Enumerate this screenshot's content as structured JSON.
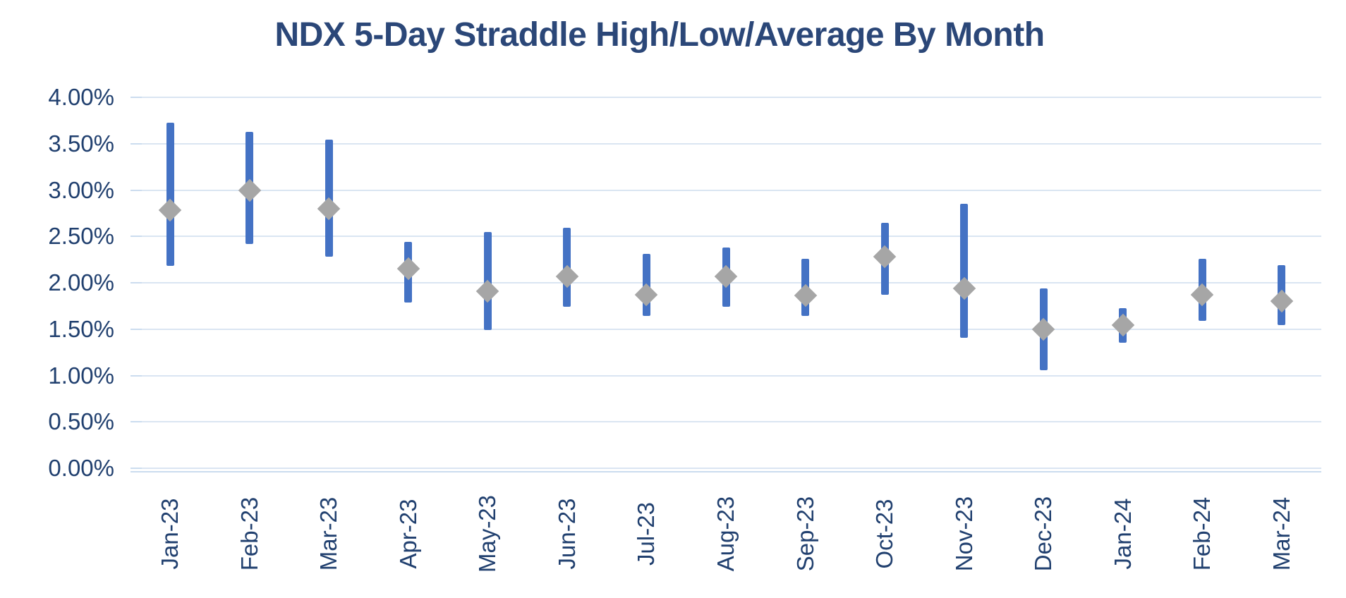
{
  "title": "NDX 5-Day Straddle High/Low/Average By Month",
  "colors": {
    "bar_blue": "#4472C4",
    "marker_gray": "#A6A6A6",
    "title_navy": "#2B4778",
    "axis_label_navy": "#21406F",
    "gridline_blue": "#DAE5F2",
    "axis_line_blue": "#CBDCEF",
    "background": "#FFFFFF"
  },
  "y_axis": {
    "tick_labels": [
      "4.00%",
      "3.50%",
      "3.00%",
      "2.50%",
      "2.00%",
      "1.50%",
      "1.00%",
      "0.50%",
      "0.00%"
    ],
    "max": 4.0,
    "min": 0.0,
    "step": 0.5
  },
  "chart_data": {
    "type": "bar",
    "subtype": "high-low-range-with-average-marker",
    "title": "NDX 5-Day Straddle High/Low/Average By Month",
    "categories": [
      "Jan-23",
      "Feb-23",
      "Mar-23",
      "Apr-23",
      "May-23",
      "Jun-23",
      "Jul-23",
      "Aug-23",
      "Sep-23",
      "Oct-23",
      "Nov-23",
      "Dec-23",
      "Jan-24",
      "Feb-24",
      "Mar-24"
    ],
    "series": [
      {
        "name": "High",
        "values": [
          3.73,
          3.63,
          3.54,
          2.44,
          2.55,
          2.59,
          2.31,
          2.38,
          2.26,
          2.65,
          2.85,
          1.94,
          1.73,
          2.26,
          2.19
        ]
      },
      {
        "name": "Low",
        "values": [
          2.18,
          2.42,
          2.28,
          1.79,
          1.49,
          1.74,
          1.64,
          1.74,
          1.64,
          1.87,
          1.41,
          1.06,
          1.35,
          1.59,
          1.54
        ]
      },
      {
        "name": "Average",
        "values": [
          2.78,
          3.0,
          2.8,
          2.15,
          1.91,
          2.07,
          1.87,
          2.07,
          1.86,
          2.28,
          1.94,
          1.5,
          1.54,
          1.87,
          1.8
        ]
      }
    ],
    "values_unit": "percent",
    "xlabel": "",
    "ylabel": "",
    "ylim": [
      0,
      4.0
    ],
    "ytick_step": 0.5,
    "grid": true,
    "legend": false
  }
}
